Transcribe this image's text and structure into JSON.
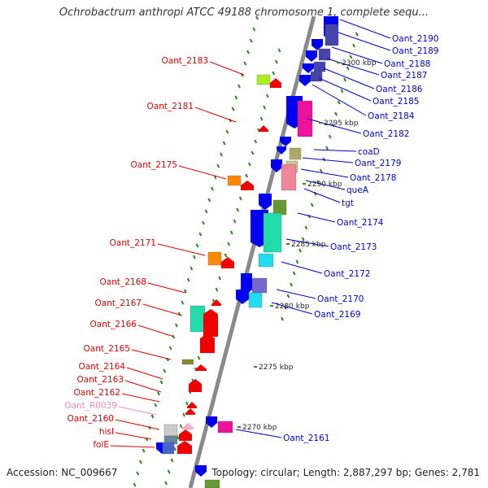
{
  "title": "Ochrobactrum anthropi ATCC 49188 chromosome 1, complete sequ...",
  "accession": "Accession: NC_009667",
  "topology": "Topology: circular; Length: 2,887,297 bp; Genes: 2,781",
  "colors": {
    "backbone": "#8a8a8a",
    "tick": "#2a8a1a",
    "label_left": "#e00000",
    "label_right": "#0000cc",
    "label_rna": "#ee88cc"
  },
  "scale_labels": [
    {
      "text": "2300 kbp",
      "kbp": 2300
    },
    {
      "text": "2295 kbp",
      "kbp": 2295
    },
    {
      "text": "2290 kbp",
      "kbp": 2290
    },
    {
      "text": "2285 kbp",
      "kbp": 2285
    },
    {
      "text": "2280 kbp",
      "kbp": 2280
    },
    {
      "text": "2275 kbp",
      "kbp": 2275
    },
    {
      "text": "2270 kbp",
      "kbp": 2270
    }
  ],
  "left_labels": [
    {
      "text": "Oant_2183",
      "kind": "gene"
    },
    {
      "text": "Oant_2181",
      "kind": "gene"
    },
    {
      "text": "Oant_2175",
      "kind": "gene"
    },
    {
      "text": "Oant_2171",
      "kind": "gene"
    },
    {
      "text": "Oant_2168",
      "kind": "gene"
    },
    {
      "text": "Oant_2167",
      "kind": "gene"
    },
    {
      "text": "Oant_2166",
      "kind": "gene"
    },
    {
      "text": "Oant_2165",
      "kind": "gene"
    },
    {
      "text": "Oant_2164",
      "kind": "gene"
    },
    {
      "text": "Oant_2163",
      "kind": "gene"
    },
    {
      "text": "Oant_2162",
      "kind": "gene"
    },
    {
      "text": "Oant_R0039",
      "kind": "rna"
    },
    {
      "text": "Oant_2160",
      "kind": "gene"
    },
    {
      "text": "hisI",
      "kind": "gene"
    },
    {
      "text": "folE",
      "kind": "gene"
    }
  ],
  "right_labels": [
    {
      "text": "Oant_2190"
    },
    {
      "text": "Oant_2189"
    },
    {
      "text": "Oant_2188"
    },
    {
      "text": "Oant_2187"
    },
    {
      "text": "Oant_2186"
    },
    {
      "text": "Oant_2185"
    },
    {
      "text": "Oant_2184"
    },
    {
      "text": "Oant_2182"
    },
    {
      "text": "coaD"
    },
    {
      "text": "Oant_2179"
    },
    {
      "text": "Oant_2178"
    },
    {
      "text": "queA"
    },
    {
      "text": "tgt"
    },
    {
      "text": "Oant_2174"
    },
    {
      "text": "Oant_2173"
    },
    {
      "text": "Oant_2172"
    },
    {
      "text": "Oant_2170"
    },
    {
      "text": "Oant_2169"
    },
    {
      "text": "Oant_2161"
    }
  ]
}
